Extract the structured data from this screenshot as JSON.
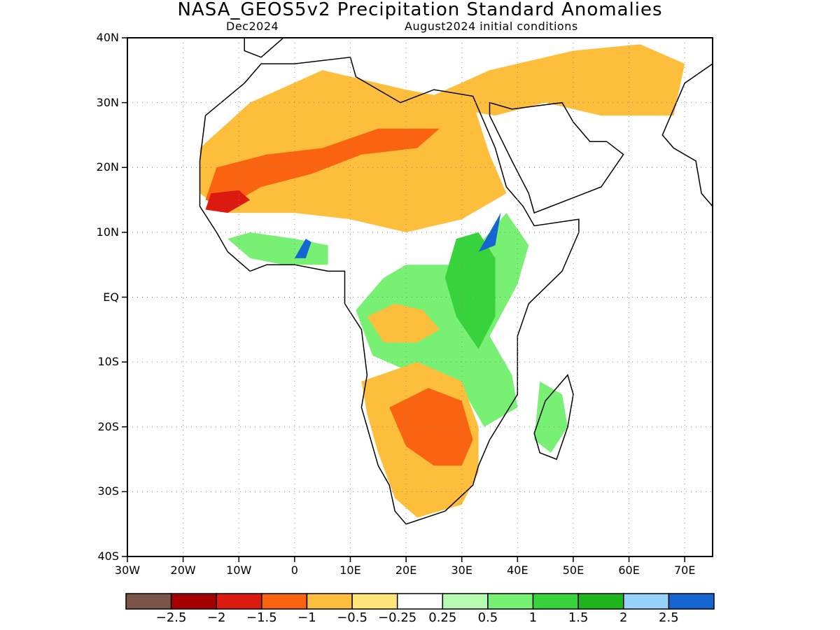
{
  "title": "NASA_GEOS5v2 Precipitation Standard Anomalies",
  "subtitle_left": "Dec2024",
  "subtitle_right": "August2024 initial conditions",
  "lat_ticks": [
    {
      "label": "40N",
      "value": 40
    },
    {
      "label": "30N",
      "value": 30
    },
    {
      "label": "20N",
      "value": 20
    },
    {
      "label": "10N",
      "value": 10
    },
    {
      "label": "EQ",
      "value": 0
    },
    {
      "label": "10S",
      "value": -10
    },
    {
      "label": "20S",
      "value": -20
    },
    {
      "label": "30S",
      "value": -30
    },
    {
      "label": "40S",
      "value": -40
    }
  ],
  "lon_ticks": [
    {
      "label": "30W",
      "value": -30
    },
    {
      "label": "20W",
      "value": -20
    },
    {
      "label": "10W",
      "value": -10
    },
    {
      "label": "0",
      "value": 0
    },
    {
      "label": "10E",
      "value": 10
    },
    {
      "label": "20E",
      "value": 20
    },
    {
      "label": "30E",
      "value": 30
    },
    {
      "label": "40E",
      "value": 40
    },
    {
      "label": "50E",
      "value": 50
    },
    {
      "label": "60E",
      "value": 60
    },
    {
      "label": "70E",
      "value": 70
    }
  ],
  "map_extent": {
    "lon_min": -30,
    "lon_max": 75,
    "lat_min": -40,
    "lat_max": 40
  },
  "colorbar": {
    "colors": [
      "#7a5547",
      "#a50000",
      "#dd1a10",
      "#fa6410",
      "#fdbe3c",
      "#ffe57a",
      "#ffffff",
      "#b4fab0",
      "#78f073",
      "#37d23c",
      "#1eb41e",
      "#96d2fa",
      "#1464d2"
    ],
    "labels": [
      "−2.5",
      "−2",
      "−1.5",
      "−1",
      "−0.5",
      "−0.25",
      "0.25",
      "0.5",
      "1",
      "1.5",
      "2",
      "2.5"
    ]
  },
  "anomaly_regions": [
    {
      "level": "-0.5",
      "color": "#fdbe3c",
      "points": [
        [
          -17,
          23
        ],
        [
          -8,
          30
        ],
        [
          5,
          35
        ],
        [
          20,
          32
        ],
        [
          32,
          30
        ],
        [
          35,
          22
        ],
        [
          38,
          16
        ],
        [
          30,
          12
        ],
        [
          20,
          10
        ],
        [
          10,
          12
        ],
        [
          0,
          13
        ],
        [
          -12,
          13
        ],
        [
          -17,
          16
        ]
      ]
    },
    {
      "level": "-1",
      "color": "#fa6410",
      "points": [
        [
          -16,
          15
        ],
        [
          -14,
          20
        ],
        [
          -5,
          22
        ],
        [
          5,
          23
        ],
        [
          15,
          26
        ],
        [
          26,
          26
        ],
        [
          22,
          23
        ],
        [
          12,
          22
        ],
        [
          3,
          19
        ],
        [
          -6,
          17
        ],
        [
          -12,
          14
        ]
      ]
    },
    {
      "level": "-1.5",
      "color": "#dd1a10",
      "points": [
        [
          -16,
          13.5
        ],
        [
          -15,
          16
        ],
        [
          -10,
          16.5
        ],
        [
          -8,
          15
        ],
        [
          -12,
          13
        ]
      ]
    },
    {
      "level": "-0.5",
      "color": "#fdbe3c",
      "points": [
        [
          22,
          30
        ],
        [
          35,
          35
        ],
        [
          50,
          38
        ],
        [
          62,
          39
        ],
        [
          70,
          36
        ],
        [
          68,
          28
        ],
        [
          55,
          28
        ],
        [
          45,
          30
        ],
        [
          36,
          28
        ]
      ]
    },
    {
      "level": "0.5",
      "color": "#78f073",
      "points": [
        [
          20,
          5
        ],
        [
          28,
          5
        ],
        [
          34,
          9
        ],
        [
          38,
          13
        ],
        [
          42,
          8
        ],
        [
          40,
          2
        ],
        [
          35,
          -6
        ],
        [
          39,
          -12
        ],
        [
          40,
          -17
        ],
        [
          34,
          -20
        ],
        [
          30,
          -14
        ],
        [
          22,
          -12
        ],
        [
          14,
          -9
        ],
        [
          11,
          -2
        ],
        [
          16,
          3
        ]
      ]
    },
    {
      "level": "1",
      "color": "#37d23c",
      "points": [
        [
          29,
          9
        ],
        [
          33,
          10
        ],
        [
          36,
          6
        ],
        [
          36,
          -3
        ],
        [
          33,
          -8
        ],
        [
          29,
          -3
        ],
        [
          27,
          3
        ]
      ]
    },
    {
      "level": "2.5",
      "color": "#1464d2",
      "points": [
        [
          33,
          7
        ],
        [
          35,
          10
        ],
        [
          37,
          13
        ],
        [
          36,
          8
        ]
      ]
    },
    {
      "level": "2.5",
      "color": "#1464d2",
      "points": [
        [
          16,
          -5
        ],
        [
          18,
          -7
        ],
        [
          19,
          -6
        ],
        [
          17,
          -4
        ]
      ]
    },
    {
      "level": "0.5",
      "color": "#78f073",
      "points": [
        [
          -12,
          9
        ],
        [
          -8,
          6
        ],
        [
          -2,
          5
        ],
        [
          6,
          5
        ],
        [
          6,
          8
        ],
        [
          0,
          9
        ],
        [
          -8,
          10
        ]
      ]
    },
    {
      "level": "2.5",
      "color": "#1464d2",
      "points": [
        [
          0,
          6
        ],
        [
          2,
          9
        ],
        [
          3,
          8.5
        ],
        [
          2,
          6
        ]
      ]
    },
    {
      "level": "-0.5",
      "color": "#fdbe3c",
      "points": [
        [
          12,
          -13
        ],
        [
          22,
          -10
        ],
        [
          30,
          -13
        ],
        [
          33,
          -20
        ],
        [
          33,
          -27
        ],
        [
          30,
          -32
        ],
        [
          22,
          -34
        ],
        [
          18,
          -31
        ],
        [
          15,
          -24
        ],
        [
          13,
          -18
        ]
      ]
    },
    {
      "level": "-1",
      "color": "#fa6410",
      "points": [
        [
          17,
          -17
        ],
        [
          24,
          -14
        ],
        [
          30,
          -16
        ],
        [
          32,
          -22
        ],
        [
          30,
          -26
        ],
        [
          25,
          -26
        ],
        [
          20,
          -23
        ]
      ]
    },
    {
      "level": "-0.5",
      "color": "#fdbe3c",
      "points": [
        [
          13,
          -3
        ],
        [
          18,
          -1
        ],
        [
          23,
          -2
        ],
        [
          26,
          -5
        ],
        [
          22,
          -7
        ],
        [
          16,
          -7
        ]
      ]
    },
    {
      "level": "0.5",
      "color": "#78f073",
      "points": [
        [
          44,
          -13
        ],
        [
          48,
          -15
        ],
        [
          49,
          -20
        ],
        [
          46,
          -24
        ],
        [
          43,
          -22
        ]
      ]
    }
  ],
  "land_outlines": [
    {
      "name": "africa",
      "points": [
        [
          -17,
          21
        ],
        [
          -16,
          28
        ],
        [
          -9,
          33
        ],
        [
          -6,
          36
        ],
        [
          0,
          36
        ],
        [
          10,
          37
        ],
        [
          11,
          34
        ],
        [
          19,
          30
        ],
        [
          25,
          32
        ],
        [
          32,
          31
        ],
        [
          34,
          27
        ],
        [
          36,
          23
        ],
        [
          38,
          17
        ],
        [
          41,
          14
        ],
        [
          43,
          11
        ],
        [
          51,
          12
        ],
        [
          51,
          10
        ],
        [
          48,
          4
        ],
        [
          42,
          -1
        ],
        [
          40,
          -6
        ],
        [
          40,
          -11
        ],
        [
          40,
          -15
        ],
        [
          35,
          -22
        ],
        [
          33,
          -26
        ],
        [
          32,
          -29
        ],
        [
          27,
          -33
        ],
        [
          20,
          -35
        ],
        [
          18,
          -33
        ],
        [
          17,
          -29
        ],
        [
          15,
          -26
        ],
        [
          12,
          -17
        ],
        [
          13,
          -12
        ],
        [
          12,
          -5
        ],
        [
          9,
          -1
        ],
        [
          9,
          4
        ],
        [
          6,
          4
        ],
        [
          0,
          5
        ],
        [
          -5,
          5
        ],
        [
          -8,
          4
        ],
        [
          -12,
          7
        ],
        [
          -14,
          10
        ],
        [
          -17,
          14
        ]
      ]
    },
    {
      "name": "madagascar",
      "points": [
        [
          49,
          -12
        ],
        [
          50,
          -15
        ],
        [
          49,
          -20
        ],
        [
          47,
          -25
        ],
        [
          44,
          -24
        ],
        [
          43,
          -21
        ],
        [
          45,
          -16
        ]
      ]
    },
    {
      "name": "arabia",
      "points": [
        [
          35,
          30
        ],
        [
          39,
          29
        ],
        [
          48,
          30
        ],
        [
          50,
          27
        ],
        [
          53,
          24
        ],
        [
          56,
          24
        ],
        [
          59,
          22
        ],
        [
          55,
          17
        ],
        [
          52,
          16
        ],
        [
          43,
          13
        ],
        [
          42,
          16
        ],
        [
          39,
          21
        ],
        [
          35,
          28
        ]
      ]
    },
    {
      "name": "iberia",
      "points": [
        [
          -9,
          38
        ],
        [
          -9,
          40
        ],
        [
          -2,
          40
        ],
        [
          -6,
          37
        ]
      ]
    },
    {
      "name": "india",
      "points": [
        [
          66,
          25
        ],
        [
          68,
          23
        ],
        [
          72,
          21
        ],
        [
          73,
          16
        ],
        [
          75,
          14
        ],
        [
          75,
          36
        ],
        [
          70,
          33
        ]
      ]
    }
  ]
}
